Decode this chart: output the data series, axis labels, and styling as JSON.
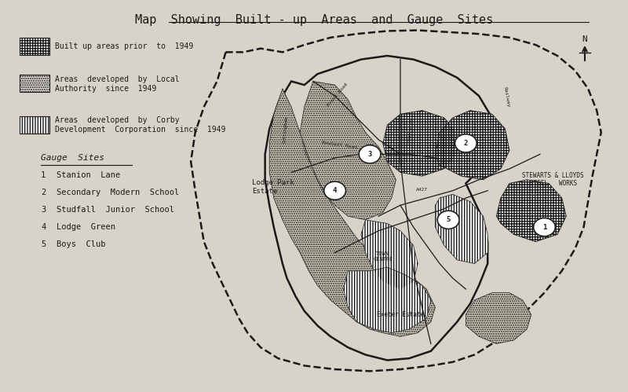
{
  "title": "Map  Showing  Built - up  Areas  and  Gauge  Sites",
  "bg_color": "#d8d3c8",
  "text_color": "#1a1a1a",
  "gauge_sites": [
    {
      "num": "1",
      "name": "Stanion  Lane"
    },
    {
      "num": "2",
      "name": "Secondary  Modern  School"
    },
    {
      "num": "3",
      "name": "Studfall  Junior  School"
    },
    {
      "num": "4",
      "name": "Lodge  Green"
    },
    {
      "num": "5",
      "name": "Boys  Club"
    }
  ]
}
